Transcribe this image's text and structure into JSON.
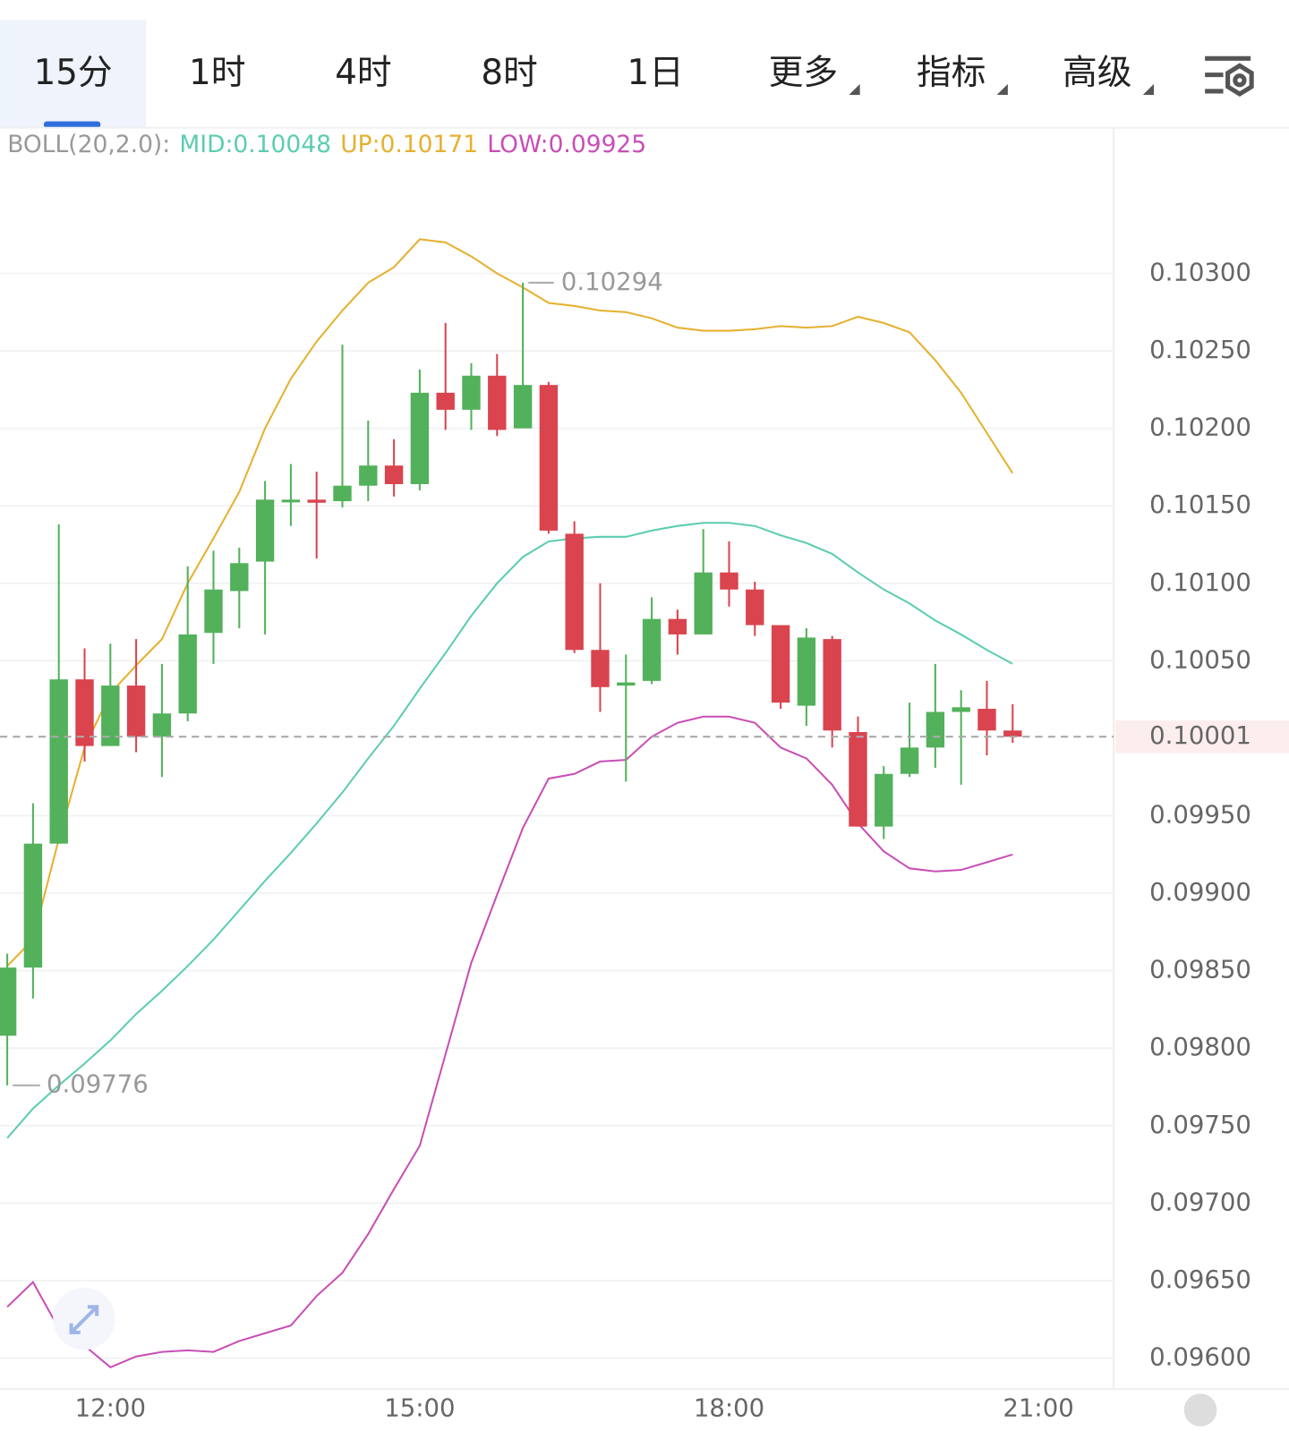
{
  "tabs": [
    "15分",
    "1时",
    "4时",
    "8时",
    "1日",
    "更多",
    "指标",
    "高级"
  ],
  "chart_data": {
    "type": "candlestick",
    "indicator": "BOLL(20,2.0):",
    "legend": [
      {
        "label": "MID:",
        "value": 0.10048,
        "color": "#5ccdb0"
      },
      {
        "label": "UP:",
        "value": 0.10171,
        "color": "#e6b030"
      },
      {
        "label": "LOW:",
        "value": 0.09925,
        "color": "#c84eb6"
      }
    ],
    "x": [
      11,
      11.25,
      11.5,
      11.75,
      12,
      12.25,
      12.5,
      12.75,
      13,
      13.25,
      13.5,
      13.75,
      14,
      14.25,
      14.5,
      14.75,
      15,
      15.25,
      15.5,
      15.75,
      16,
      16.25,
      16.5,
      16.75,
      17,
      17.25,
      17.5,
      17.75,
      18,
      18.25,
      18.5,
      18.75,
      19,
      19.25,
      19.5,
      19.75,
      20,
      20.25,
      20.5,
      20.75
    ],
    "xlim": [
      10.93,
      21.73
    ],
    "xticks": [
      {
        "value": 12,
        "label": "12:00"
      },
      {
        "value": 15,
        "label": "15:00"
      },
      {
        "value": 18,
        "label": "18:00"
      },
      {
        "value": 21,
        "label": "21:00"
      }
    ],
    "open": [
      0.09808,
      0.09852,
      0.09932,
      0.10038,
      0.09995,
      0.10034,
      0.10001,
      0.10016,
      0.10068,
      0.10095,
      0.10114,
      0.10153,
      0.10154,
      0.10153,
      0.10163,
      0.10176,
      0.10164,
      0.10223,
      0.10212,
      0.10234,
      0.102,
      0.10228,
      0.10132,
      0.10057,
      0.10034,
      0.10037,
      0.10077,
      0.10067,
      0.10107,
      0.10096,
      0.10073,
      0.10021,
      0.10064,
      0.10004,
      0.09943,
      0.09977,
      0.09994,
      0.10017,
      0.10019,
      0.10005
    ],
    "high": [
      0.09861,
      0.09958,
      0.10138,
      0.10058,
      0.10061,
      0.10064,
      0.10048,
      0.10111,
      0.10121,
      0.10123,
      0.10166,
      0.10177,
      0.10172,
      0.10254,
      0.10205,
      0.10193,
      0.10238,
      0.10268,
      0.10242,
      0.10248,
      0.10294,
      0.1023,
      0.1014,
      0.101,
      0.10054,
      0.10091,
      0.10083,
      0.10135,
      0.10127,
      0.10101,
      0.10073,
      0.10071,
      0.10066,
      0.10014,
      0.09982,
      0.10023,
      0.10048,
      0.10031,
      0.10037,
      0.10022
    ],
    "low": [
      0.09776,
      0.09832,
      0.09932,
      0.09985,
      0.09995,
      0.09991,
      0.09975,
      0.10011,
      0.10048,
      0.10071,
      0.10067,
      0.10137,
      0.10116,
      0.10149,
      0.10153,
      0.10156,
      0.1016,
      0.10199,
      0.10199,
      0.10195,
      0.102,
      0.10132,
      0.10055,
      0.10017,
      0.09972,
      0.10035,
      0.10054,
      0.10067,
      0.10085,
      0.10066,
      0.10019,
      0.10008,
      0.09994,
      0.09943,
      0.09935,
      0.09975,
      0.09981,
      0.0997,
      0.09989,
      0.09997
    ],
    "close": [
      0.09852,
      0.09932,
      0.10038,
      0.09995,
      0.10034,
      0.10001,
      0.10016,
      0.10067,
      0.10096,
      0.10113,
      0.10154,
      0.10154,
      0.10152,
      0.10163,
      0.10176,
      0.10164,
      0.10223,
      0.10212,
      0.10234,
      0.10199,
      0.10228,
      0.10134,
      0.10057,
      0.10033,
      0.10036,
      0.10077,
      0.10067,
      0.10107,
      0.10096,
      0.10073,
      0.10023,
      0.10065,
      0.10005,
      0.09943,
      0.09977,
      0.09994,
      0.10017,
      0.1002,
      0.10005,
      0.10001
    ],
    "up_color": "#52b15a",
    "down_color": "#d9444f",
    "bands": [
      {
        "color": "#e6b030",
        "values": [
          0.09853,
          0.0987,
          0.09935,
          0.09994,
          0.10029,
          0.10047,
          0.10064,
          0.101,
          0.10129,
          0.10159,
          0.102,
          0.10232,
          0.10256,
          0.10276,
          0.10294,
          0.10304,
          0.10322,
          0.1032,
          0.10311,
          0.103,
          0.10291,
          0.10281,
          0.10279,
          0.10276,
          0.10275,
          0.10271,
          0.10265,
          0.10263,
          0.10263,
          0.10264,
          0.10266,
          0.10265,
          0.10266,
          0.10272,
          0.10268,
          0.10262,
          0.10244,
          0.10223,
          0.10197,
          0.10171
        ]
      },
      {
        "color": "#5ccdb0",
        "values": [
          0.09742,
          0.09761,
          0.09776,
          0.0979,
          0.09805,
          0.09822,
          0.09837,
          0.09853,
          0.0987,
          0.09889,
          0.09908,
          0.09926,
          0.09945,
          0.09965,
          0.09987,
          0.10008,
          0.10032,
          0.10055,
          0.10079,
          0.101,
          0.10117,
          0.10127,
          0.10129,
          0.1013,
          0.1013,
          0.10134,
          0.10137,
          0.10139,
          0.10139,
          0.10137,
          0.10131,
          0.10126,
          0.10119,
          0.10107,
          0.10096,
          0.10087,
          0.10076,
          0.10067,
          0.10057,
          0.10048
        ]
      },
      {
        "color": "#c84eb6",
        "values": [
          0.09633,
          0.09649,
          0.09619,
          0.09608,
          0.09594,
          0.09601,
          0.09604,
          0.09605,
          0.09604,
          0.09611,
          0.09616,
          0.09621,
          0.0964,
          0.09655,
          0.0968,
          0.09709,
          0.09737,
          0.09796,
          0.09855,
          0.09899,
          0.09942,
          0.09974,
          0.09977,
          0.09985,
          0.09986,
          0.10001,
          0.1001,
          0.10014,
          0.10014,
          0.1001,
          0.09994,
          0.09987,
          0.0997,
          0.09945,
          0.09927,
          0.09916,
          0.09914,
          0.09915,
          0.0992,
          0.09925
        ]
      }
    ],
    "ylim": [
      0.0958,
      0.10394
    ],
    "yticks": [
      {
        "value": 0.103,
        "label": "0.10300"
      },
      {
        "value": 0.1025,
        "label": "0.10250"
      },
      {
        "value": 0.102,
        "label": "0.10200"
      },
      {
        "value": 0.1015,
        "label": "0.10150"
      },
      {
        "value": 0.101,
        "label": "0.10100"
      },
      {
        "value": 0.1005,
        "label": "0.10050"
      },
      {
        "value": 0.0995,
        "label": "0.09950"
      },
      {
        "value": 0.099,
        "label": "0.09900"
      },
      {
        "value": 0.0985,
        "label": "0.09850"
      },
      {
        "value": 0.098,
        "label": "0.09800"
      },
      {
        "value": 0.0975,
        "label": "0.09750"
      },
      {
        "value": 0.097,
        "label": "0.09700"
      },
      {
        "value": 0.0965,
        "label": "0.09650"
      },
      {
        "value": 0.096,
        "label": "0.09600"
      }
    ],
    "grid": true,
    "last_price": 0.10001,
    "max_label": 0.10294,
    "min_label": 0.09776
  }
}
